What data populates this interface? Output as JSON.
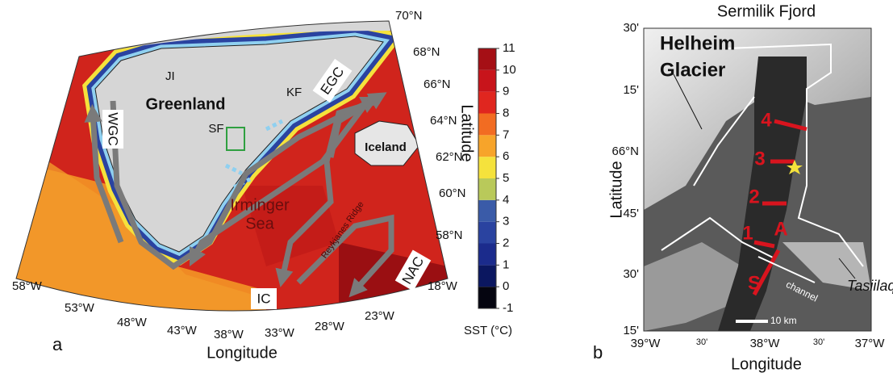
{
  "panel_a": {
    "label": "a",
    "x_label": "Longitude",
    "y_label": "Latitude",
    "lon_ticks": [
      "58°W",
      "53°W",
      "48°W",
      "43°W",
      "38°W",
      "33°W",
      "28°W",
      "23°W",
      "18°W"
    ],
    "lat_ticks": [
      "70°N",
      "68°N",
      "66°N",
      "64°N",
      "62°N",
      "60°N",
      "58°N"
    ],
    "places": [
      "JI",
      "Greenland",
      "KF",
      "SF",
      "Iceland",
      "Irminger",
      "Sea",
      "Reykjanes Ridge"
    ],
    "currents": [
      "EGC",
      "WGC",
      "IC",
      "NAC"
    ],
    "colorbar": {
      "label": "SST (°C)",
      "ticks": [
        -1,
        0,
        1,
        2,
        3,
        4,
        5,
        6,
        7,
        8,
        9,
        10,
        11
      ],
      "colors": [
        "#050510",
        "#0b1760",
        "#1b2b8c",
        "#2a43a0",
        "#3a5ba8",
        "#b9c95a",
        "#f5e23c",
        "#f7a42a",
        "#f26c22",
        "#e0261f",
        "#c8141b",
        "#a50f15"
      ]
    }
  },
  "panel_b": {
    "label": "b",
    "x_label": "Longitude",
    "y_label": "Latitude",
    "lon_ticks": [
      "39°W",
      "30'",
      "38°W",
      "30'",
      "37°W"
    ],
    "lat_ticks": [
      "30'",
      "15'",
      "66°N",
      "45'",
      "30'",
      "15'"
    ],
    "places": [
      "Sermilik Fjord",
      "Helheim",
      "Glacier",
      "Tasiilaq",
      "channel"
    ],
    "sites": [
      "4",
      "3",
      "2",
      "1",
      "A",
      "S"
    ],
    "scale": "10 km"
  }
}
